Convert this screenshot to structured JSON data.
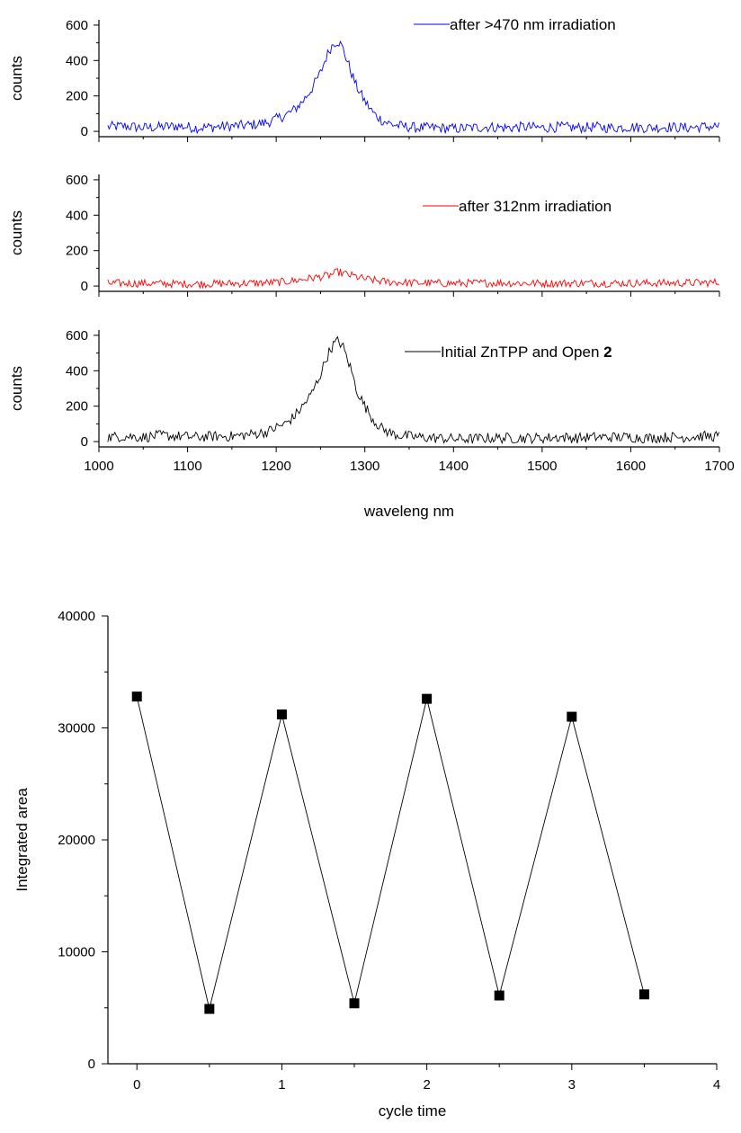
{
  "chart_data": [
    {
      "type": "line",
      "title": "",
      "ylabel": "counts",
      "ylim": [
        -30,
        630
      ],
      "yticks": [
        0,
        200,
        400,
        600
      ],
      "xlim": [
        1000,
        1700
      ],
      "color": "#0000ff",
      "series": [
        {
          "name": "after >470 nm irradiation",
          "x": [
            1010,
            1030,
            1050,
            1070,
            1090,
            1110,
            1130,
            1150,
            1170,
            1190,
            1200,
            1210,
            1220,
            1230,
            1240,
            1250,
            1255,
            1260,
            1265,
            1270,
            1275,
            1280,
            1285,
            1290,
            1300,
            1310,
            1320,
            1330,
            1340,
            1360,
            1380,
            1400,
            1420,
            1440,
            1460,
            1480,
            1500,
            1520,
            1540,
            1560,
            1580,
            1600,
            1620,
            1640,
            1660,
            1680,
            1700
          ],
          "y": [
            25,
            30,
            20,
            25,
            30,
            20,
            25,
            30,
            35,
            50,
            70,
            90,
            120,
            170,
            240,
            330,
            400,
            460,
            500,
            510,
            470,
            400,
            330,
            260,
            170,
            100,
            60,
            40,
            30,
            20,
            20,
            15,
            20,
            25,
            20,
            25,
            20,
            25,
            20,
            25,
            20,
            25,
            20,
            25,
            20,
            25,
            30
          ]
        }
      ]
    },
    {
      "type": "line",
      "title": "",
      "ylabel": "counts",
      "ylim": [
        -30,
        630
      ],
      "yticks": [
        0,
        200,
        400,
        600
      ],
      "xlim": [
        1000,
        1700
      ],
      "color": "#ff0000",
      "series": [
        {
          "name": "after 312nm irradiation",
          "x": [
            1010,
            1050,
            1100,
            1150,
            1200,
            1220,
            1240,
            1260,
            1270,
            1280,
            1300,
            1320,
            1350,
            1400,
            1450,
            1500,
            1550,
            1600,
            1650,
            1700
          ],
          "y": [
            15,
            15,
            12,
            14,
            20,
            30,
            45,
            60,
            80,
            65,
            40,
            25,
            18,
            15,
            18,
            15,
            17,
            16,
            17,
            20
          ]
        }
      ]
    },
    {
      "type": "line",
      "title": "",
      "ylabel": "counts",
      "xlabel": "waveleng nm",
      "ylim": [
        -30,
        630
      ],
      "yticks": [
        0,
        200,
        400,
        600
      ],
      "xlim": [
        1000,
        1700
      ],
      "xticks": [
        1000,
        1100,
        1200,
        1300,
        1400,
        1500,
        1600,
        1700
      ],
      "color": "#000000",
      "series": [
        {
          "name": "Initial ZnTPP and Open ",
          "name_bold": "2",
          "x": [
            1010,
            1030,
            1050,
            1070,
            1090,
            1110,
            1130,
            1150,
            1170,
            1190,
            1200,
            1210,
            1220,
            1230,
            1240,
            1250,
            1255,
            1260,
            1265,
            1270,
            1275,
            1280,
            1285,
            1290,
            1300,
            1310,
            1320,
            1330,
            1340,
            1360,
            1380,
            1400,
            1420,
            1440,
            1460,
            1480,
            1500,
            1520,
            1540,
            1560,
            1580,
            1600,
            1620,
            1640,
            1660,
            1680,
            1700
          ],
          "y": [
            25,
            30,
            25,
            35,
            30,
            25,
            30,
            30,
            40,
            55,
            80,
            100,
            140,
            200,
            270,
            380,
            450,
            510,
            550,
            570,
            540,
            470,
            400,
            300,
            200,
            120,
            70,
            45,
            35,
            25,
            20,
            15,
            15,
            20,
            20,
            20,
            20,
            25,
            20,
            25,
            25,
            25,
            20,
            25,
            25,
            30,
            30
          ]
        }
      ]
    },
    {
      "type": "line",
      "title": "",
      "xlabel": "cycle time",
      "ylabel": "Integrated area",
      "xlim": [
        -0.2,
        4
      ],
      "xticks": [
        0,
        1,
        2,
        3,
        4
      ],
      "ylim": [
        0,
        40000
      ],
      "yticks": [
        0,
        10000,
        20000,
        30000,
        40000
      ],
      "yticklabels": [
        "0",
        "10000",
        "20000",
        "30000",
        "40000"
      ],
      "markers": "square",
      "color": "#000000",
      "series": [
        {
          "x": [
            0,
            0.5,
            1,
            1.5,
            2,
            2.5,
            3,
            3.5
          ],
          "y": [
            32800,
            4900,
            31200,
            5400,
            32600,
            6100,
            31000,
            6200
          ]
        }
      ]
    }
  ]
}
